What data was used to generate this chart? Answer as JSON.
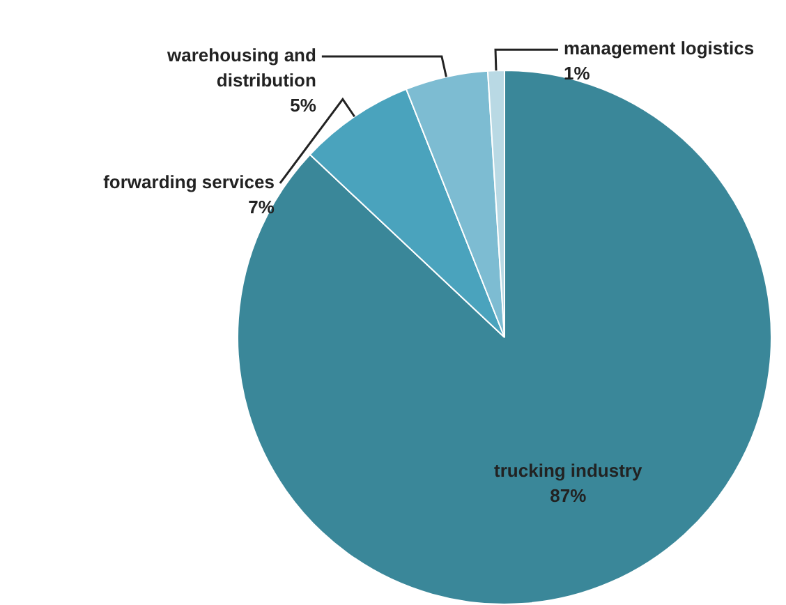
{
  "chart_data": {
    "type": "pie",
    "categories": [
      "trucking industry",
      "forwarding services",
      "warehousing and distribution",
      "management logistics"
    ],
    "values": [
      87,
      7,
      5,
      1
    ],
    "value_labels": [
      "87%",
      "7%",
      "5%",
      "1%"
    ],
    "colors": [
      "#3a8799",
      "#4aa3bd",
      "#7dbcd2",
      "#b9d9e4"
    ]
  }
}
